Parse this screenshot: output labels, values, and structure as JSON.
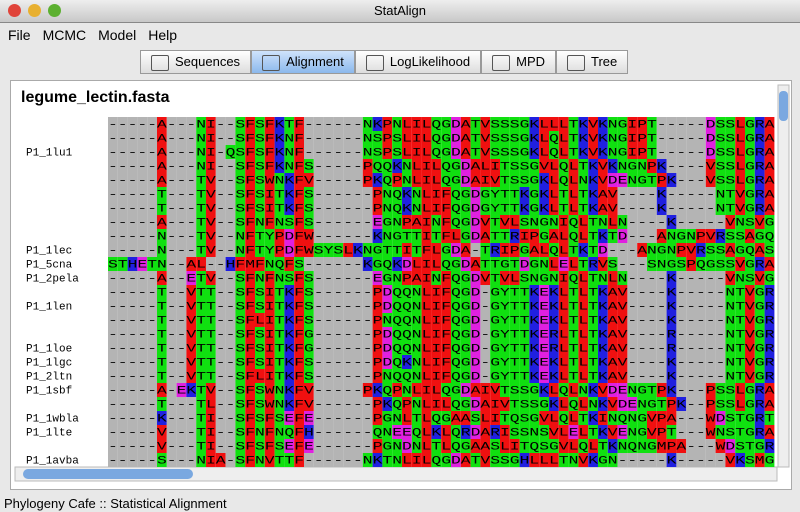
{
  "window": {
    "title": "StatAlign"
  },
  "menu": [
    "File",
    "MCMC",
    "Model",
    "Help"
  ],
  "tabs": [
    "Sequences",
    "Alignment",
    "LogLikelihood",
    "MPD",
    "Tree"
  ],
  "selected_tab": "Alignment",
  "alignment": {
    "file": "legume_lectin.fasta",
    "rows": [
      {
        "sequence": "-----A---NI--SFSFKTF------NKPNLILQGDATVSSSGKLLLTKVKNGIPT-----DSSLGRALYSA"
      },
      {
        "sequence": "-----A---NI--SFSFKNF------NSPSLILQGDATVSSSGKLQLTKVKNGIPT-----DSSLGRALYSS"
      },
      {
        "label": "P1_1lu1",
        "sequence": "-----A---NI-QSFSFKNF------NSPSLILQGDATVSSSGKLQLTKVKNGIPT-----DSSLGRAFYSS"
      },
      {
        "sequence": "-----A---NI--SFSFKNFS-----PQQKNLILQGDALITSSGVLQLTKVKNGNPK----VSSLGRALYAK"
      },
      {
        "sequence": "-----A---TV--SFSWNKFV-----PKQPNLILQGDAIVTSSGKLQLNKVDENGTPK---VSSLGRALYST"
      },
      {
        "sequence": "-----T---TV--SFSITKFS------PNQKNLIFQGDGYTTKGKLTLTKAV----K-----NTVGRALYSS"
      },
      {
        "sequence": "-----T---TV--SFSITKFS------PNQKNLIFQGDGYTTKGKLTLTKAV----K-----NTVGRALYSS"
      },
      {
        "sequence": "-----A---TV--SFNFNSFS------EGNPAINFQGDVTVLSNGNIQLTNLN----K-----VNSVGRVLYAM"
      },
      {
        "sequence": "-----N---TV--NFTYPDFW------KNGTTITFLGDATTRIPGALQLTKTD---ANGNPVRSSAGQASYS"
      },
      {
        "label": "P1_1lec",
        "sequence": "-----N---TV--NFTYPDFWSYSLKNGTTITFLGDA-TRIPGALQLTKTD---ANGNPVRSSAGQASYS"
      },
      {
        "label": "P1_5cna",
        "sequence": "STHETN--AL--HFMFNQFS------KGQKDLILQGDATTGTDGNLELTRVS---SNGSPQGSSVGRALFYA"
      },
      {
        "label": "P1_2pela",
        "sequence": "-----A--ETV--SFNFNSFS------EGNPAINFQGDVTVLSNGNIQLTNLN----K-----VNSVGRVLYAM"
      },
      {
        "sequence": "-----T--VTT--SFSITKFS------PDQQNLIFQGD-GYTTKEKLTLTKAV----K-----NTVGRALYSS"
      },
      {
        "label": "P1_1len",
        "sequence": "-----T--VTT--SFSITKFS------PDQQNLIFQGD-GYTTKEKLTLTKAV----K-----NTVGRALYST"
      },
      {
        "sequence": "-----T--VTT--SFLITKFS------PNQQNLIFQGD-GYTTKEKLTLTKAV----K-----NTVGRALYSS"
      },
      {
        "sequence": "-----T--VTT--SFSITKFG------PDQQNLIFQGD-GYTTKERLTLTKAV----R-----NTVGRALYSS"
      },
      {
        "label": "P1_1loe",
        "sequence": "-----T--VTT--SFSITKFG------PDQQNLIFQGD-GYTTKERLTLTKAV----R-----NTVGRALYSS"
      },
      {
        "label": "P1_1lgc",
        "sequence": "-----T--VTT--SFSITKFS------PDQKNLIFQGD-GYTTKEKLTLTKAV----K-----NTVGRALYSS"
      },
      {
        "label": "P1_2ltn",
        "sequence": "-----T--VTT--SFLITKFS------PNQQNLIFQGD-GYTTKEKLTLTKAV----K-----NTVGRALYSS"
      },
      {
        "label": "P1_1sbf",
        "sequence": "-----A-EKTV--SFSWNKFV-----PKQPNLILQGDAIVTSSGKLQLNKVDENGTPK---PSSLGRALYST"
      },
      {
        "sequence": "-----T---TL--SFSWNKFV------PKQPNLILQGDAIVTSSGKLQLNKVDENGTPK--PSSLGRALYSS"
      },
      {
        "label": "P1_1wbla",
        "sequence": "-----K---TI--SFSFSEFE------PGNLTLQGAASLITQSGVLQLTKINQNGVPA---WDSTGRTLYAK"
      },
      {
        "label": "P1_1lte",
        "sequence": "-----V---TI--SFNFNQFH------QNEEQLKLQRDARISSNSVLELTKVENGVPT---WNSTGRALYAK"
      },
      {
        "sequence": "-----V---TI--SFSFSEFE------PGNDNLTLQGAASLITQSGVLQLTKNQNGMPA---WDSTGRTLYAK"
      },
      {
        "label": "P1_1avba",
        "sequence": "-----S---NIA-SFNVTTF------NKTNLILQGDATVSSGHLLLTNVKGN-----K-----VKSMGRAFYSA"
      }
    ]
  },
  "status": "Phylogeny Cafe :: Statistical Alignment"
}
